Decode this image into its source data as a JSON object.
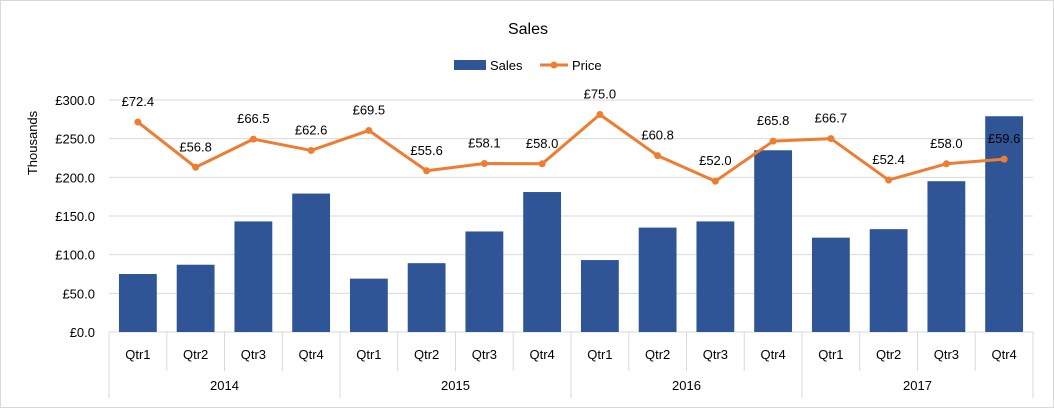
{
  "chart_data": {
    "type": "bar",
    "title": "Sales",
    "ylabel": "Thousands",
    "xlabel": "",
    "ylim": [
      0,
      300
    ],
    "y_ticks": [
      "£0.0",
      "£50.0",
      "£100.0",
      "£150.0",
      "£200.0",
      "£250.0",
      "£300.0"
    ],
    "y_tick_values": [
      0,
      50,
      100,
      150,
      200,
      250,
      300
    ],
    "grid": true,
    "legend_position": "top-center",
    "categories": [
      "Qtr1",
      "Qtr2",
      "Qtr3",
      "Qtr4",
      "Qtr1",
      "Qtr2",
      "Qtr3",
      "Qtr4",
      "Qtr1",
      "Qtr2",
      "Qtr3",
      "Qtr4",
      "Qtr1",
      "Qtr2",
      "Qtr3",
      "Qtr4"
    ],
    "groups": [
      {
        "label": "2014",
        "count": 4
      },
      {
        "label": "2015",
        "count": 4
      },
      {
        "label": "2016",
        "count": 4
      },
      {
        "label": "2017",
        "count": 4
      }
    ],
    "series": [
      {
        "name": "Sales",
        "type": "bar",
        "color": "#2F5597",
        "values": [
          75,
          87,
          143,
          179,
          69,
          89,
          130,
          181,
          93,
          135,
          143,
          235,
          122,
          133,
          195,
          279
        ]
      },
      {
        "name": "Price",
        "type": "line",
        "color": "#ED7D31",
        "values": [
          72.4,
          56.8,
          66.5,
          62.6,
          69.5,
          55.6,
          58.1,
          58.0,
          75.0,
          60.8,
          52.0,
          65.8,
          66.7,
          52.4,
          58.0,
          59.6
        ],
        "labels": [
          "£72.4",
          "£56.8",
          "£66.5",
          "£62.6",
          "£69.5",
          "£55.6",
          "£58.1",
          "£58.0",
          "£75.0",
          "£60.8",
          "£52.0",
          "£65.8",
          "£66.7",
          "£52.4",
          "£58.0",
          "£59.6"
        ]
      }
    ]
  }
}
